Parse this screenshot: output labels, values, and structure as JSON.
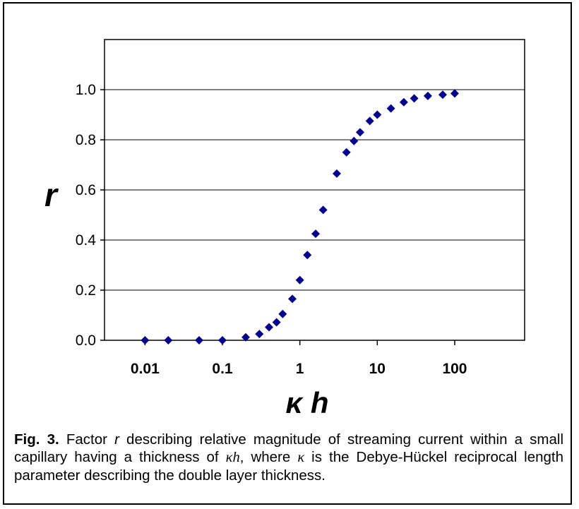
{
  "chart_data": {
    "type": "scatter",
    "x_scale": "log",
    "xlim": [
      0.003,
      800
    ],
    "ylim": [
      0,
      1.2
    ],
    "y_ticks": [
      0.0,
      0.2,
      0.4,
      0.6,
      0.8,
      1.0
    ],
    "y_tick_labels": [
      "0.0",
      "0.2",
      "0.4",
      "0.6",
      "0.8",
      "1.0"
    ],
    "x_ticks": [
      0.01,
      0.1,
      1,
      10,
      100
    ],
    "x_tick_labels": [
      "0.01",
      "0.1",
      "1",
      "10",
      "100"
    ],
    "xlabel": "κ h",
    "ylabel": "r",
    "grid": "horizontal",
    "marker": "diamond",
    "marker_color": "#00008b",
    "points": [
      {
        "x": 0.01,
        "y": 0.0
      },
      {
        "x": 0.02,
        "y": 0.0
      },
      {
        "x": 0.05,
        "y": 0.0
      },
      {
        "x": 0.1,
        "y": 0.0
      },
      {
        "x": 0.2,
        "y": 0.012
      },
      {
        "x": 0.3,
        "y": 0.025
      },
      {
        "x": 0.4,
        "y": 0.052
      },
      {
        "x": 0.5,
        "y": 0.072
      },
      {
        "x": 0.6,
        "y": 0.105
      },
      {
        "x": 0.8,
        "y": 0.165
      },
      {
        "x": 1.0,
        "y": 0.24
      },
      {
        "x": 1.25,
        "y": 0.34
      },
      {
        "x": 1.6,
        "y": 0.425
      },
      {
        "x": 2.0,
        "y": 0.52
      },
      {
        "x": 3.0,
        "y": 0.665
      },
      {
        "x": 4.0,
        "y": 0.75
      },
      {
        "x": 5.0,
        "y": 0.795
      },
      {
        "x": 6.0,
        "y": 0.83
      },
      {
        "x": 8.0,
        "y": 0.875
      },
      {
        "x": 10.0,
        "y": 0.9
      },
      {
        "x": 15.0,
        "y": 0.925
      },
      {
        "x": 22.0,
        "y": 0.95
      },
      {
        "x": 30.0,
        "y": 0.965
      },
      {
        "x": 45.0,
        "y": 0.975
      },
      {
        "x": 70.0,
        "y": 0.98
      },
      {
        "x": 100.0,
        "y": 0.985
      }
    ]
  },
  "caption": {
    "label": "Fig. 3.",
    "t1": "  Factor ",
    "r": "r",
    "t2": " describing relative magnitude of streaming current within a small capillary having a thickness of ",
    "kh": "κh",
    "t3": ", where ",
    "k": "κ",
    "t4": " is the Debye-Hückel reciprocal length parameter describing the double layer thickness."
  }
}
